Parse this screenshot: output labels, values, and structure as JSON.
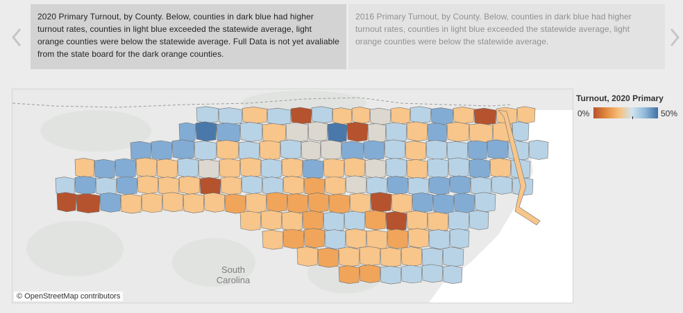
{
  "carousel": {
    "tabs": [
      {
        "label": "2020 Primary Turnout, by County. Below, counties in dark blue had higher turnout rates, counties in light blue exceeded the statewide average, light orange counties were below the statewide average. Full Data is not yet avaliable from the state board for the dark orange counties."
      },
      {
        "label": "2016 Primary Turnout, by County. Below, counties in dark blue had higher turnout rates, counties in light blue exceeded the statewide average, light orange counties were below the statewide average."
      }
    ]
  },
  "map": {
    "attribution": "© OpenStreetMap contributors",
    "place_labels": [
      "South",
      "Carolina"
    ],
    "colors": {
      "dark_blue": "#4a78aa",
      "mid_blue": "#82acd4",
      "light_blue": "#b9d3e6",
      "grey": "#dcd8d0",
      "light_orange": "#f8c58a",
      "orange": "#f0a55a",
      "dark_orange": "#b5532e",
      "water": "#ffffff",
      "land": "#e9eae9"
    }
  },
  "legend": {
    "title": "Turnout, 2020 Primary",
    "min_label": "0%",
    "max_label": "50%",
    "range": [
      0,
      50
    ],
    "unit": "%"
  }
}
